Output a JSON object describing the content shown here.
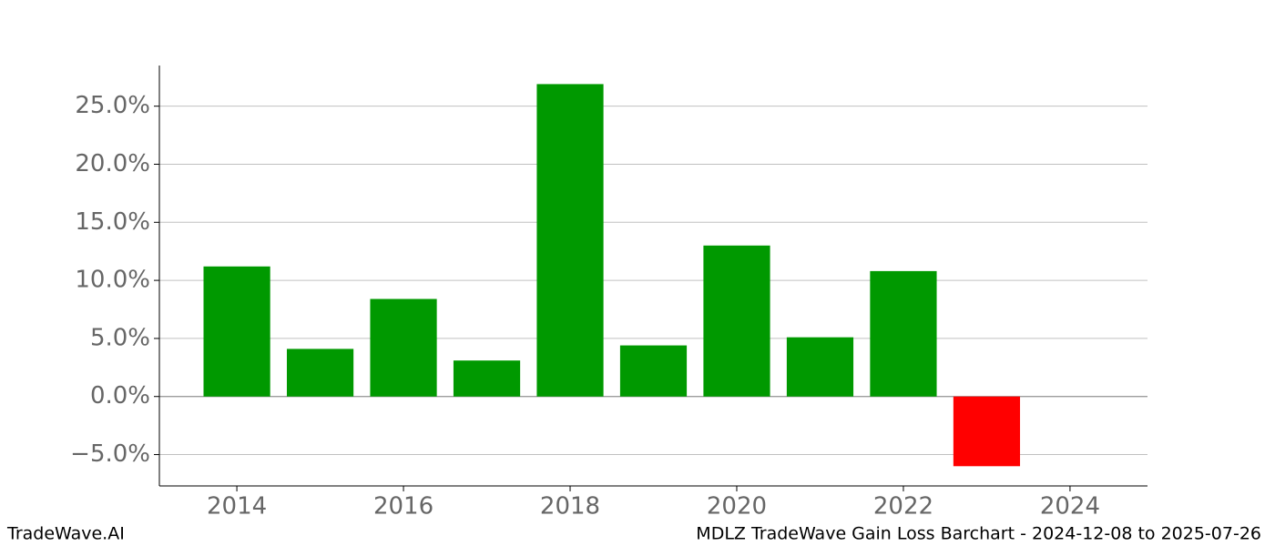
{
  "chart_data": {
    "type": "bar",
    "x": [
      2014,
      2015,
      2016,
      2017,
      2018,
      2019,
      2020,
      2021,
      2022,
      2023
    ],
    "values": [
      11.2,
      4.1,
      8.4,
      3.1,
      26.9,
      4.4,
      13.0,
      5.1,
      10.8,
      -6.0
    ],
    "color": "#009900",
    "negative_color": "#ff0000",
    "xlim": [
      2013.07,
      2024.93
    ],
    "xticks": [
      2014,
      2016,
      2018,
      2020,
      2022,
      2024
    ],
    "ylim": [
      -7.7,
      28.5
    ],
    "yticks": [
      {
        "value": -5,
        "label": "−5.0%"
      },
      {
        "value": 0,
        "label": "0.0%"
      },
      {
        "value": 5,
        "label": "5.0%"
      },
      {
        "value": 10,
        "label": "10.0%"
      },
      {
        "value": 15,
        "label": "15.0%"
      },
      {
        "value": 20,
        "label": "20.0%"
      },
      {
        "value": 25,
        "label": "25.0%"
      }
    ],
    "grid": true,
    "footer_left": "TradeWave.AI",
    "footer_right": "MDLZ TradeWave Gain Loss Barchart - 2024-12-08 to 2025-07-26"
  }
}
